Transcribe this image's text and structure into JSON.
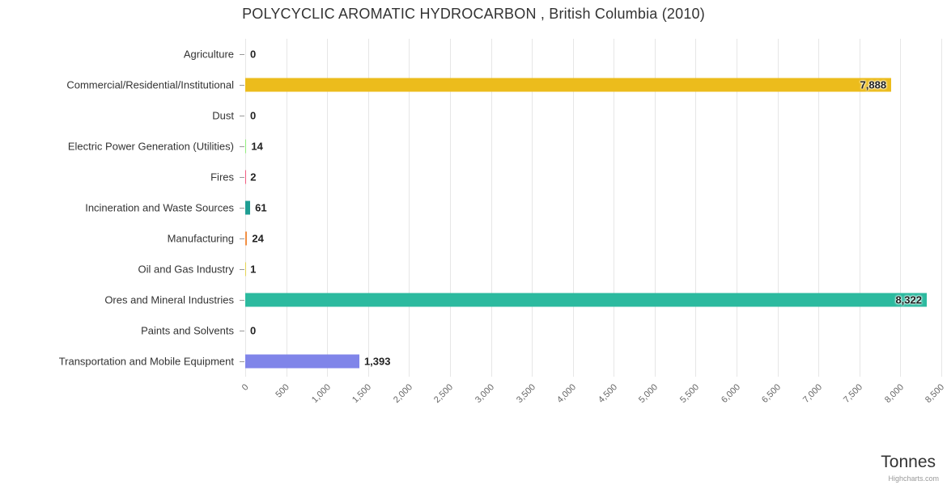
{
  "title": "POLYCYCLIC AROMATIC HYDROCARBON , British Columbia (2010)",
  "credit": "Highcharts.com",
  "chart_data": {
    "type": "bar",
    "orientation": "horizontal",
    "title": "POLYCYCLIC AROMATIC HYDROCARBON , British Columbia (2010)",
    "xlabel": "Tonnes",
    "ylabel": "",
    "xlim": [
      0,
      8500
    ],
    "tick_interval": 500,
    "grid": true,
    "legend": false,
    "categories": [
      "Agriculture",
      "Commercial/Residential/Institutional",
      "Dust",
      "Electric Power Generation (Utilities)",
      "Fires",
      "Incineration and Waste Sources",
      "Manufacturing",
      "Oil and Gas Industry",
      "Ores and Mineral Industries",
      "Paints and Solvents",
      "Transportation and Mobile Equipment"
    ],
    "values": [
      0,
      7888,
      0,
      14,
      2,
      61,
      24,
      1,
      8322,
      0,
      1393
    ],
    "value_labels": [
      "0",
      "7,888",
      "0",
      "14",
      "2",
      "61",
      "24",
      "1",
      "8,322",
      "0",
      "1,393"
    ],
    "colors": [
      "#7cb5ec",
      "#ecbc1c",
      "#434348",
      "#90ed7d",
      "#f15c80",
      "#1f9e93",
      "#f28f43",
      "#e4d354",
      "#2cba9f",
      "#f45b5b",
      "#8085e9"
    ],
    "tick_labels": [
      "0",
      "500",
      "1,000",
      "1,500",
      "2,000",
      "2,500",
      "3,000",
      "3,500",
      "4,000",
      "4,500",
      "5,000",
      "5,500",
      "6,000",
      "6,500",
      "7,000",
      "7,500",
      "8,000",
      "8,500"
    ]
  }
}
